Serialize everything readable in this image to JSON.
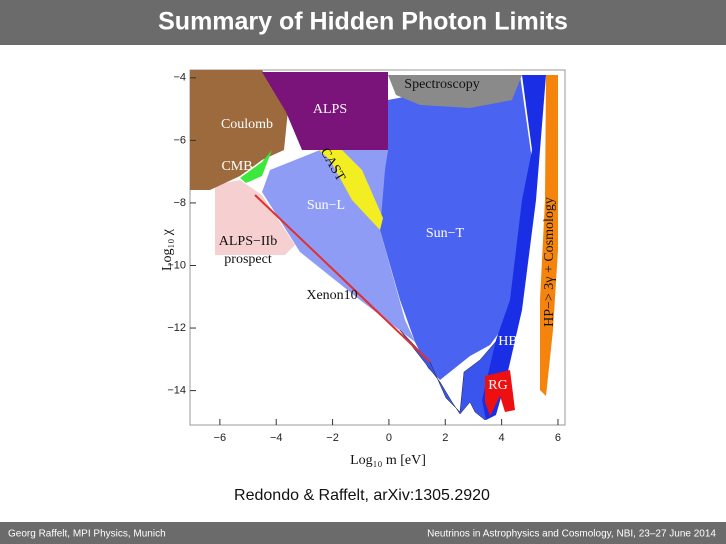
{
  "header": {
    "title": "Summary of Hidden Photon Limits"
  },
  "chart_data": {
    "type": "region",
    "xlabel": "Log₁₀ m [eV]",
    "ylabel": "Log₁₀ χ",
    "xlim": [
      -7.06,
      6.25
    ],
    "ylim": [
      -15.1,
      -3.75
    ],
    "xticks": [
      {
        "value": -6,
        "label": "−6"
      },
      {
        "value": -4,
        "label": "−4"
      },
      {
        "value": -2,
        "label": "−2"
      },
      0,
      2,
      4,
      6
    ],
    "yticks": [
      {
        "value": -4,
        "label": "−4"
      },
      {
        "value": -6,
        "label": "−6"
      },
      {
        "value": -8,
        "label": "−8"
      },
      {
        "value": -10,
        "label": "−10"
      },
      {
        "value": -12,
        "label": "−12"
      },
      {
        "value": -14,
        "label": "−14"
      }
    ],
    "annotations": [
      "Spectroscopy",
      "ALPS",
      "Coulomb",
      "CMB",
      "CAST",
      "Sun−L",
      "Sun−T",
      "ALPS−IIb",
      "prospect",
      "Xenon10",
      "HB",
      "RG",
      "HP−> 3γ + Cosmology"
    ]
  },
  "citation": "Redondo & Raffelt, arXiv:1305.2920",
  "footer": {
    "left": "Georg Raffelt, MPI Physics, Munich",
    "right": "Neutrinos in Astrophysics and Cosmology, NBI, 23–27 June 2014"
  }
}
